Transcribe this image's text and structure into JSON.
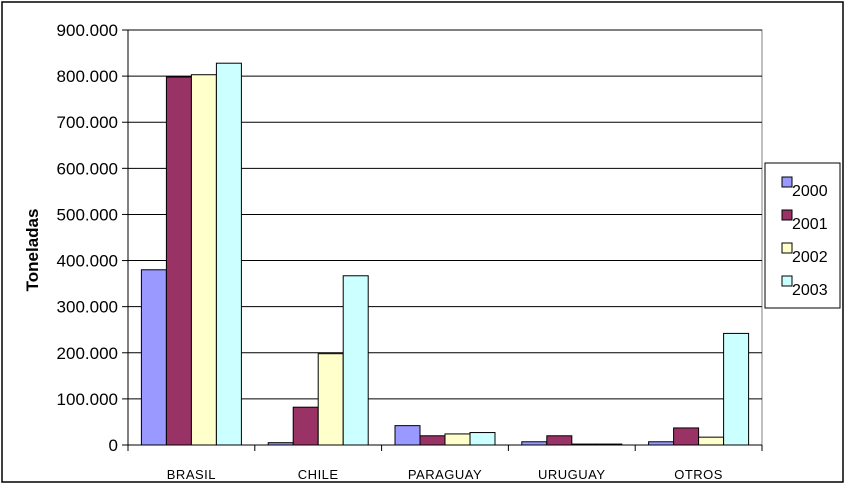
{
  "chart_data": {
    "type": "bar",
    "title": "",
    "xlabel": "",
    "ylabel": "Toneladas",
    "ylim": [
      0,
      900000
    ],
    "yticks": [
      0,
      100000,
      200000,
      300000,
      400000,
      500000,
      600000,
      700000,
      800000,
      900000
    ],
    "ytick_labels": [
      "0",
      "100.000",
      "200.000",
      "300.000",
      "400.000",
      "500.000",
      "600.000",
      "700.000",
      "800.000",
      "900.000"
    ],
    "categories": [
      "BRASIL",
      "CHILE",
      "PARAGUAY",
      "URUGUAY",
      "OTROS"
    ],
    "series": [
      {
        "name": "2000",
        "color": "#9999FF",
        "values": [
          380000,
          5000,
          42000,
          7000,
          7000
        ]
      },
      {
        "name": "2001",
        "color": "#993366",
        "values": [
          798000,
          82000,
          20000,
          20000,
          37000
        ]
      },
      {
        "name": "2002",
        "color": "#FFFFCC",
        "values": [
          803000,
          198000,
          24000,
          2000,
          17000
        ]
      },
      {
        "name": "2003",
        "color": "#CCFFFF",
        "values": [
          828000,
          367000,
          27000,
          2000,
          242000
        ]
      }
    ],
    "grid": true,
    "legend_position": "right"
  }
}
